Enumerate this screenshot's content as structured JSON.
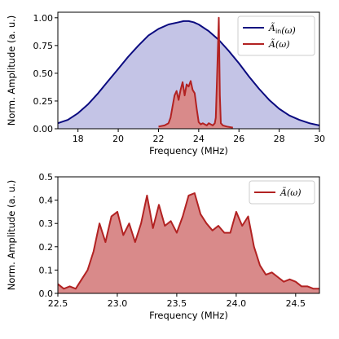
{
  "chart_data": [
    {
      "type": "area",
      "xlabel": "Frequency (MHz)",
      "ylabel": "Norm. Amplitude (a. u.)",
      "xlim": [
        17,
        30
      ],
      "ylim": [
        0,
        1.05
      ],
      "xticks": [
        18,
        20,
        22,
        24,
        26,
        28,
        30
      ],
      "xtick_labels": [
        "18",
        "20",
        "22",
        "24",
        "26",
        "28",
        "30"
      ],
      "yticks": [
        0,
        0.25,
        0.5,
        0.75,
        1.0
      ],
      "ytick_labels": [
        "0.00",
        "0.25",
        "0.50",
        "0.75",
        "1.00"
      ],
      "grid": false,
      "legend_position": "top-right",
      "series": [
        {
          "name": "Ã_in(ω)",
          "color": "#0b0b80",
          "fill": "#c4c4e6",
          "x": [
            17.0,
            17.5,
            18.0,
            18.5,
            19.0,
            19.5,
            20.0,
            20.5,
            21.0,
            21.5,
            22.0,
            22.5,
            23.0,
            23.25,
            23.5,
            23.75,
            24.0,
            24.5,
            25.0,
            25.5,
            26.0,
            26.5,
            27.0,
            27.5,
            28.0,
            28.5,
            29.0,
            29.5,
            30.0
          ],
          "y": [
            0.05,
            0.08,
            0.14,
            0.22,
            0.32,
            0.43,
            0.54,
            0.65,
            0.75,
            0.84,
            0.9,
            0.94,
            0.96,
            0.97,
            0.97,
            0.96,
            0.94,
            0.88,
            0.8,
            0.7,
            0.59,
            0.47,
            0.36,
            0.26,
            0.18,
            0.12,
            0.08,
            0.05,
            0.03
          ]
        },
        {
          "name": "Ã(ω)",
          "color": "#b22222",
          "fill": "#d98a8a",
          "x": [
            22.0,
            22.3,
            22.5,
            22.6,
            22.7,
            22.8,
            22.9,
            23.0,
            23.1,
            23.2,
            23.3,
            23.4,
            23.5,
            23.6,
            23.7,
            23.8,
            23.9,
            24.0,
            24.1,
            24.2,
            24.3,
            24.4,
            24.5,
            24.6,
            24.7,
            24.8,
            24.85,
            24.9,
            24.95,
            25.0,
            25.05,
            25.1,
            25.2,
            25.4,
            25.7
          ],
          "y": [
            0.02,
            0.03,
            0.05,
            0.1,
            0.2,
            0.3,
            0.34,
            0.26,
            0.35,
            0.42,
            0.3,
            0.4,
            0.38,
            0.43,
            0.35,
            0.32,
            0.18,
            0.06,
            0.04,
            0.05,
            0.04,
            0.03,
            0.05,
            0.04,
            0.03,
            0.05,
            0.1,
            0.4,
            0.7,
            1.0,
            0.3,
            0.05,
            0.03,
            0.02,
            0.01
          ]
        }
      ]
    },
    {
      "type": "area",
      "xlabel": "Frequency (MHz)",
      "ylabel": "Norm. Amplitude (a. u.)",
      "xlim": [
        22.5,
        24.7
      ],
      "ylim": [
        0,
        0.5
      ],
      "xticks": [
        22.5,
        23.0,
        23.5,
        24.0,
        24.5
      ],
      "xtick_labels": [
        "22.5",
        "23.0",
        "23.5",
        "24.0",
        "24.5"
      ],
      "yticks": [
        0,
        0.1,
        0.2,
        0.3,
        0.4,
        0.5
      ],
      "ytick_labels": [
        "0.0",
        "0.1",
        "0.2",
        "0.3",
        "0.4",
        "0.5"
      ],
      "grid": false,
      "legend_position": "top-right",
      "series": [
        {
          "name": "Ã(ω)",
          "color": "#b22222",
          "fill": "#d98a8a",
          "x": [
            22.5,
            22.55,
            22.6,
            22.65,
            22.7,
            22.75,
            22.8,
            22.85,
            22.9,
            22.95,
            23.0,
            23.05,
            23.1,
            23.15,
            23.2,
            23.25,
            23.3,
            23.35,
            23.4,
            23.45,
            23.5,
            23.55,
            23.6,
            23.65,
            23.7,
            23.75,
            23.8,
            23.85,
            23.9,
            23.95,
            24.0,
            24.05,
            24.1,
            24.15,
            24.2,
            24.25,
            24.3,
            24.35,
            24.4,
            24.45,
            24.5,
            24.55,
            24.6,
            24.65,
            24.7
          ],
          "y": [
            0.04,
            0.02,
            0.03,
            0.02,
            0.06,
            0.1,
            0.18,
            0.3,
            0.22,
            0.33,
            0.35,
            0.25,
            0.3,
            0.22,
            0.3,
            0.42,
            0.28,
            0.38,
            0.29,
            0.31,
            0.26,
            0.33,
            0.42,
            0.43,
            0.34,
            0.3,
            0.27,
            0.29,
            0.26,
            0.26,
            0.35,
            0.29,
            0.33,
            0.2,
            0.12,
            0.08,
            0.09,
            0.07,
            0.05,
            0.06,
            0.05,
            0.03,
            0.03,
            0.02,
            0.02
          ]
        }
      ]
    }
  ]
}
